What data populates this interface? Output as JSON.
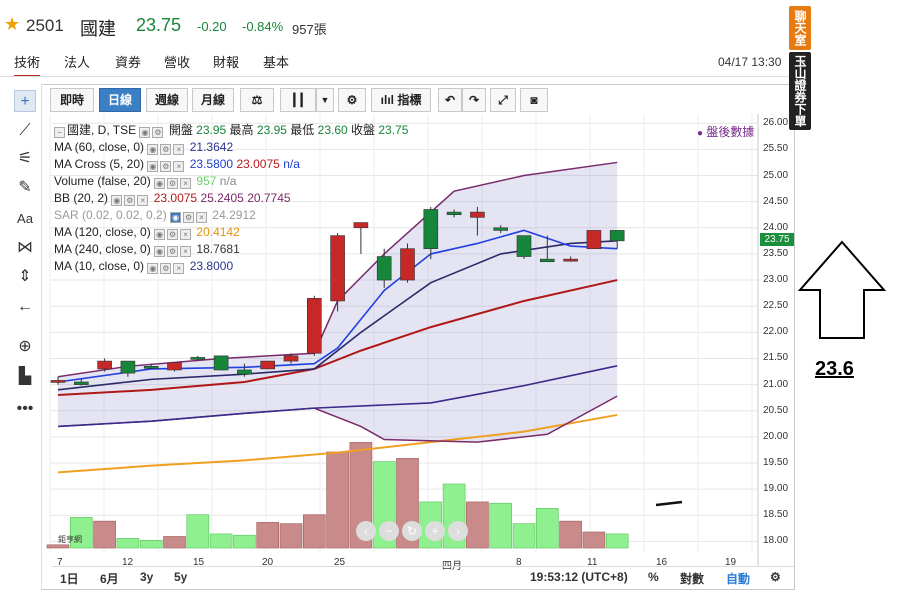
{
  "header": {
    "symbol": "2501",
    "name": "國建",
    "price": "23.75",
    "change": "-0.20",
    "percent": "-0.84%",
    "volume": "957張",
    "timestamp": "04/17 13:30",
    "up_color": "#c62828",
    "down_color": "#16863a"
  },
  "tabs": [
    "技術",
    "法人",
    "資券",
    "營收",
    "財報",
    "基本"
  ],
  "toolbar": {
    "intraday": "即時",
    "daily": "日線",
    "weekly": "週線",
    "monthly": "月線",
    "indicators": "指標"
  },
  "side": {
    "chat": "聊天室",
    "broker": "玉山證券下單"
  },
  "annotation_value": "23.6",
  "legend": {
    "main": {
      "name": "國建, D, TSE",
      "open_label": "開盤",
      "open": "23.95",
      "high_label": "最高",
      "high": "23.95",
      "low_label": "最低",
      "low": "23.60",
      "close_label": "收盤",
      "close": "23.75"
    },
    "ma60": {
      "name": "MA (60, close, 0)",
      "value": "21.3642"
    },
    "macross": {
      "name": "MA Cross (5, 20)",
      "v1": "23.5800",
      "v2": "23.0075",
      "v3": "n/a"
    },
    "volume": {
      "name": "Volume (false, 20)",
      "value": "957",
      "value2": "n/a"
    },
    "bb": {
      "name": "BB (20, 2)",
      "v1": "23.0075",
      "v2": "25.2405",
      "v3": "20.7745"
    },
    "sar": {
      "name": "SAR (0.02, 0.02, 0.2)",
      "value": "24.2912"
    },
    "ma120": {
      "name": "MA (120, close, 0)",
      "value": "20.4142"
    },
    "ma240": {
      "name": "MA (240, close, 0)",
      "value": "18.7681"
    },
    "ma10": {
      "name": "MA (10, close, 0)",
      "value": "23.8000"
    },
    "after_hours": "盤後數據"
  },
  "bottom": {
    "r1d": "1日",
    "r6m": "6月",
    "r3y": "3y",
    "r5y": "5y",
    "time": "19:53:12 (UTC+8)",
    "percent": "%",
    "log": "對數",
    "auto": "自動"
  },
  "logo_text": "鉅亨網",
  "chart_data": {
    "type": "candlestick",
    "y_ticks": [
      "26.00",
      "25.50",
      "25.00",
      "24.50",
      "24.00",
      "23.50",
      "23.00",
      "22.50",
      "22.00",
      "21.50",
      "21.00",
      "20.50",
      "20.00",
      "19.50",
      "19.00",
      "18.50",
      "18.00"
    ],
    "last_price_label": "23.75",
    "ylim": [
      17.97,
      26.1
    ],
    "x_ticks": [
      "7",
      "12",
      "15",
      "20",
      "25",
      "四月",
      "8",
      "11",
      "16",
      "19"
    ],
    "candles": [
      {
        "o": 21.05,
        "h": 21.15,
        "l": 21.0,
        "c": 21.08
      },
      {
        "o": 21.05,
        "h": 21.1,
        "l": 20.98,
        "c": 21.0
      },
      {
        "o": 21.3,
        "h": 21.5,
        "l": 21.25,
        "c": 21.45
      },
      {
        "o": 21.45,
        "h": 21.45,
        "l": 21.15,
        "c": 21.22
      },
      {
        "o": 21.35,
        "h": 21.4,
        "l": 21.3,
        "c": 21.33
      },
      {
        "o": 21.28,
        "h": 21.4,
        "l": 21.25,
        "c": 21.42
      },
      {
        "o": 21.52,
        "h": 21.55,
        "l": 21.45,
        "c": 21.5
      },
      {
        "o": 21.55,
        "h": 21.55,
        "l": 21.27,
        "c": 21.28
      },
      {
        "o": 21.28,
        "h": 21.4,
        "l": 21.15,
        "c": 21.2
      },
      {
        "o": 21.3,
        "h": 21.45,
        "l": 21.3,
        "c": 21.45
      },
      {
        "o": 21.45,
        "h": 21.6,
        "l": 21.4,
        "c": 21.55
      },
      {
        "o": 21.6,
        "h": 22.7,
        "l": 21.55,
        "c": 22.65
      },
      {
        "o": 22.6,
        "h": 23.9,
        "l": 22.4,
        "c": 23.85
      },
      {
        "o": 24.0,
        "h": 24.1,
        "l": 23.5,
        "c": 24.1
      },
      {
        "o": 23.45,
        "h": 23.6,
        "l": 22.85,
        "c": 23.0
      },
      {
        "o": 23.0,
        "h": 23.7,
        "l": 22.95,
        "c": 23.6
      },
      {
        "o": 24.35,
        "h": 24.4,
        "l": 23.4,
        "c": 23.6
      },
      {
        "o": 24.3,
        "h": 24.35,
        "l": 24.2,
        "c": 24.25
      },
      {
        "o": 24.2,
        "h": 24.4,
        "l": 23.85,
        "c": 24.3
      },
      {
        "o": 24.0,
        "h": 24.05,
        "l": 23.9,
        "c": 23.95
      },
      {
        "o": 23.85,
        "h": 23.85,
        "l": 23.4,
        "c": 23.45
      },
      {
        "o": 23.4,
        "h": 23.85,
        "l": 23.35,
        "c": 23.35
      },
      {
        "o": 23.4,
        "h": 23.45,
        "l": 23.35,
        "c": 23.4
      },
      {
        "o": 23.6,
        "h": 23.95,
        "l": 23.6,
        "c": 23.95
      },
      {
        "o": 23.95,
        "h": 23.95,
        "l": 23.6,
        "c": 23.75
      }
    ],
    "volumes": [
      0.05,
      0.48,
      0.42,
      0.15,
      0.12,
      0.18,
      0.52,
      0.22,
      0.2,
      0.4,
      0.38,
      0.52,
      1.5,
      1.65,
      1.35,
      1.4,
      0.72,
      1.0,
      0.72,
      0.7,
      0.38,
      0.62,
      0.42,
      0.25,
      0.22
    ],
    "ma60_line": [
      [
        0,
        19.32
      ],
      [
        4,
        19.45
      ],
      [
        8,
        19.55
      ],
      [
        12,
        19.7
      ],
      [
        16,
        19.9
      ],
      [
        20,
        20.1
      ],
      [
        24,
        20.42
      ]
    ],
    "bb_upper": [
      [
        0,
        21.15
      ],
      [
        3,
        21.35
      ],
      [
        7,
        21.5
      ],
      [
        11,
        21.6
      ],
      [
        12,
        22.6
      ],
      [
        14,
        23.5
      ],
      [
        17,
        24.7
      ],
      [
        20,
        25.0
      ],
      [
        24,
        25.25
      ]
    ],
    "bb_mid": [
      [
        0,
        20.8
      ],
      [
        4,
        20.9
      ],
      [
        8,
        21.05
      ],
      [
        11,
        21.3
      ],
      [
        13,
        21.65
      ],
      [
        16,
        22.1
      ],
      [
        20,
        22.6
      ],
      [
        24,
        23.0
      ]
    ],
    "bb_lower": [
      [
        0,
        20.2
      ],
      [
        4,
        20.3
      ],
      [
        8,
        20.45
      ],
      [
        11,
        20.55
      ],
      [
        13,
        20.2
      ],
      [
        14,
        19.95
      ],
      [
        18,
        19.9
      ],
      [
        21,
        20.05
      ],
      [
        24,
        20.78
      ]
    ],
    "ma_blue": [
      [
        0,
        21.05
      ],
      [
        4,
        21.3
      ],
      [
        8,
        21.33
      ],
      [
        11,
        21.4
      ],
      [
        12,
        21.7
      ],
      [
        14,
        22.8
      ],
      [
        16,
        23.5
      ],
      [
        18,
        23.7
      ],
      [
        20,
        23.95
      ],
      [
        22,
        23.65
      ],
      [
        24,
        23.6
      ]
    ],
    "ma_navy": [
      [
        0,
        20.9
      ],
      [
        4,
        21.1
      ],
      [
        8,
        21.2
      ],
      [
        11,
        21.3
      ],
      [
        13,
        22.0
      ],
      [
        16,
        22.95
      ],
      [
        19,
        23.5
      ],
      [
        22,
        23.7
      ],
      [
        24,
        23.75
      ]
    ],
    "ma_purple": [
      [
        0,
        20.2
      ],
      [
        4,
        20.3
      ],
      [
        8,
        20.45
      ],
      [
        11,
        20.55
      ],
      [
        16,
        20.65
      ],
      [
        20,
        20.98
      ],
      [
        24,
        21.36
      ]
    ]
  }
}
